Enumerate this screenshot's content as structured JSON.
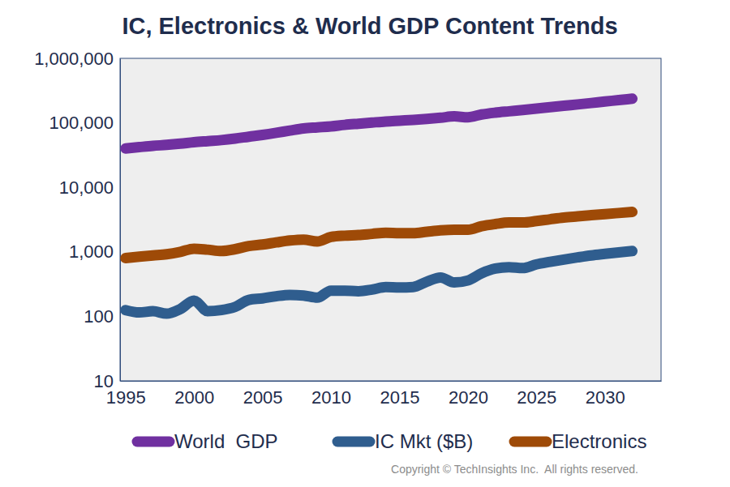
{
  "chart_data": {
    "type": "line",
    "title": "IC, Electronics & World GDP Content Trends",
    "annotations": [
      "Copyright © TechInsights Inc.  All rights reserved."
    ],
    "log": "y",
    "grid": false,
    "legend": "bottom",
    "x": [
      1995,
      1996,
      1997,
      1998,
      1999,
      2000,
      2001,
      2002,
      2003,
      2004,
      2005,
      2006,
      2007,
      2008,
      2009,
      2010,
      2011,
      2012,
      2013,
      2014,
      2015,
      2016,
      2017,
      2018,
      2019,
      2020,
      2021,
      2022,
      2023,
      2024,
      2025,
      2026,
      2027,
      2028,
      2029,
      2030,
      2031,
      2032
    ],
    "xlim": [
      1994.6,
      2034.1
    ],
    "xticks": [
      1995,
      2000,
      2005,
      2010,
      2015,
      2020,
      2025,
      2030
    ],
    "ylim": [
      10,
      1000000
    ],
    "yticks": [
      10,
      100,
      {
        "value": 1000,
        "label": "1,000"
      },
      {
        "value": 10000,
        "label": "10,000"
      },
      {
        "value": 100000,
        "label": "100,000"
      },
      {
        "value": 1000000,
        "label": "1,000,000"
      }
    ],
    "series": [
      {
        "name": "World  GDP",
        "color": "#7030a0",
        "line_style": "solid",
        "values": [
          40000,
          42000,
          44000,
          45500,
          47500,
          50000,
          52000,
          54000,
          57000,
          61000,
          65000,
          70000,
          76000,
          82000,
          85000,
          88000,
          93000,
          97000,
          101000,
          105000,
          108000,
          111000,
          115000,
          120000,
          126000,
          122000,
          135000,
          144000,
          151000,
          158000,
          166000,
          175000,
          184000,
          193000,
          203000,
          214000,
          225000,
          237000
        ]
      },
      {
        "name": "IC Mkt ($B)",
        "color": "#2f5d8e",
        "line_style": "solid",
        "values": [
          125,
          115,
          120,
          110,
          130,
          175,
          120,
          125,
          140,
          180,
          190,
          205,
          215,
          210,
          195,
          250,
          250,
          245,
          260,
          285,
          280,
          285,
          345,
          400,
          335,
          360,
          465,
          550,
          580,
          560,
          640,
          700,
          760,
          820,
          880,
          930,
          980,
          1030
        ]
      },
      {
        "name": "Electronics",
        "color": "#9e4a07",
        "line_style": "solid",
        "values": [
          800,
          840,
          880,
          920,
          1000,
          1120,
          1080,
          1030,
          1100,
          1230,
          1300,
          1400,
          1500,
          1550,
          1450,
          1700,
          1780,
          1820,
          1900,
          1980,
          1950,
          1950,
          2050,
          2150,
          2200,
          2200,
          2500,
          2700,
          2850,
          2850,
          3000,
          3200,
          3400,
          3550,
          3700,
          3850,
          4000,
          4150
        ]
      }
    ]
  }
}
